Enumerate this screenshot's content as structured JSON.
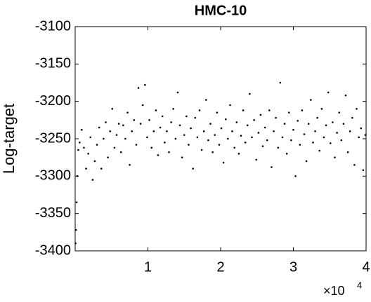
{
  "chart_data": {
    "type": "scatter",
    "title": "HMC-10",
    "y_label": "Log-target",
    "x_scale_label": {
      "base": "×10",
      "exponent": "4"
    },
    "xlim": [
      0,
      40000
    ],
    "ylim": [
      -3400,
      -3100
    ],
    "xticks": [
      {
        "value": 10000,
        "label": "1"
      },
      {
        "value": 20000,
        "label": "2"
      },
      {
        "value": 30000,
        "label": "3"
      },
      {
        "value": 40000,
        "label": "4"
      }
    ],
    "yticks": [
      -3400,
      -3350,
      -3300,
      -3250,
      -3200,
      -3150,
      -3100
    ],
    "grid": false,
    "color": "#000000",
    "x": [
      50,
      120,
      200,
      300,
      420,
      600,
      900,
      1200,
      1500,
      1800,
      2100,
      2400,
      2700,
      3000,
      3300,
      3600,
      3900,
      4200,
      4500,
      4800,
      5100,
      5400,
      5700,
      6000,
      6300,
      6600,
      6900,
      7200,
      7500,
      7800,
      8100,
      8400,
      8700,
      9000,
      9300,
      9600,
      9900,
      10200,
      10500,
      10800,
      11100,
      11400,
      11700,
      12000,
      12300,
      12600,
      12900,
      13200,
      13500,
      13800,
      14100,
      14400,
      14700,
      15000,
      15300,
      15600,
      15900,
      16200,
      16500,
      16800,
      17100,
      17400,
      17700,
      18000,
      18300,
      18600,
      18900,
      19200,
      19500,
      19800,
      20100,
      20400,
      20700,
      21000,
      21300,
      21600,
      21900,
      22200,
      22500,
      22800,
      23100,
      23400,
      23700,
      24000,
      24300,
      24600,
      24900,
      25200,
      25500,
      25800,
      26100,
      26400,
      26700,
      27000,
      27300,
      27600,
      27900,
      28200,
      28500,
      28800,
      29100,
      29400,
      29700,
      30000,
      30300,
      30600,
      30900,
      31200,
      31500,
      31800,
      32100,
      32400,
      32700,
      33000,
      33300,
      33600,
      33900,
      34200,
      34500,
      34800,
      35100,
      35400,
      35700,
      36000,
      36300,
      36600,
      36900,
      37200,
      37500,
      37800,
      38100,
      38400,
      38700,
      39000,
      39300,
      39600,
      39900
    ],
    "values": [
      -3390,
      -3372,
      -3335,
      -3300,
      -3265,
      -3255,
      -3238,
      -3262,
      -3290,
      -3270,
      -3248,
      -3305,
      -3280,
      -3258,
      -3235,
      -3290,
      -3250,
      -3228,
      -3275,
      -3240,
      -3210,
      -3262,
      -3245,
      -3230,
      -3268,
      -3232,
      -3250,
      -3215,
      -3285,
      -3240,
      -3225,
      -3258,
      -3182,
      -3230,
      -3205,
      -3178,
      -3248,
      -3225,
      -3262,
      -3240,
      -3212,
      -3272,
      -3235,
      -3220,
      -3255,
      -3240,
      -3268,
      -3228,
      -3210,
      -3250,
      -3188,
      -3232,
      -3275,
      -3245,
      -3220,
      -3258,
      -3236,
      -3290,
      -3222,
      -3248,
      -3212,
      -3265,
      -3240,
      -3198,
      -3252,
      -3230,
      -3268,
      -3245,
      -3215,
      -3258,
      -3236,
      -3282,
      -3224,
      -3250,
      -3205,
      -3240,
      -3262,
      -3228,
      -3270,
      -3246,
      -3212,
      -3255,
      -3232,
      -3190,
      -3248,
      -3225,
      -3278,
      -3242,
      -3218,
      -3260,
      -3235,
      -3252,
      -3212,
      -3288,
      -3240,
      -3222,
      -3262,
      -3175,
      -3248,
      -3230,
      -3270,
      -3215,
      -3252,
      -3238,
      -3300,
      -3226,
      -3258,
      -3212,
      -3244,
      -3280,
      -3230,
      -3198,
      -3255,
      -3240,
      -3222,
      -3266,
      -3210,
      -3248,
      -3232,
      -3188,
      -3256,
      -3228,
      -3275,
      -3242,
      -3215,
      -3252,
      -3230,
      -3192,
      -3268,
      -3240,
      -3222,
      -3285,
      -3210,
      -3248,
      -3236,
      -3292,
      -3245
    ]
  }
}
